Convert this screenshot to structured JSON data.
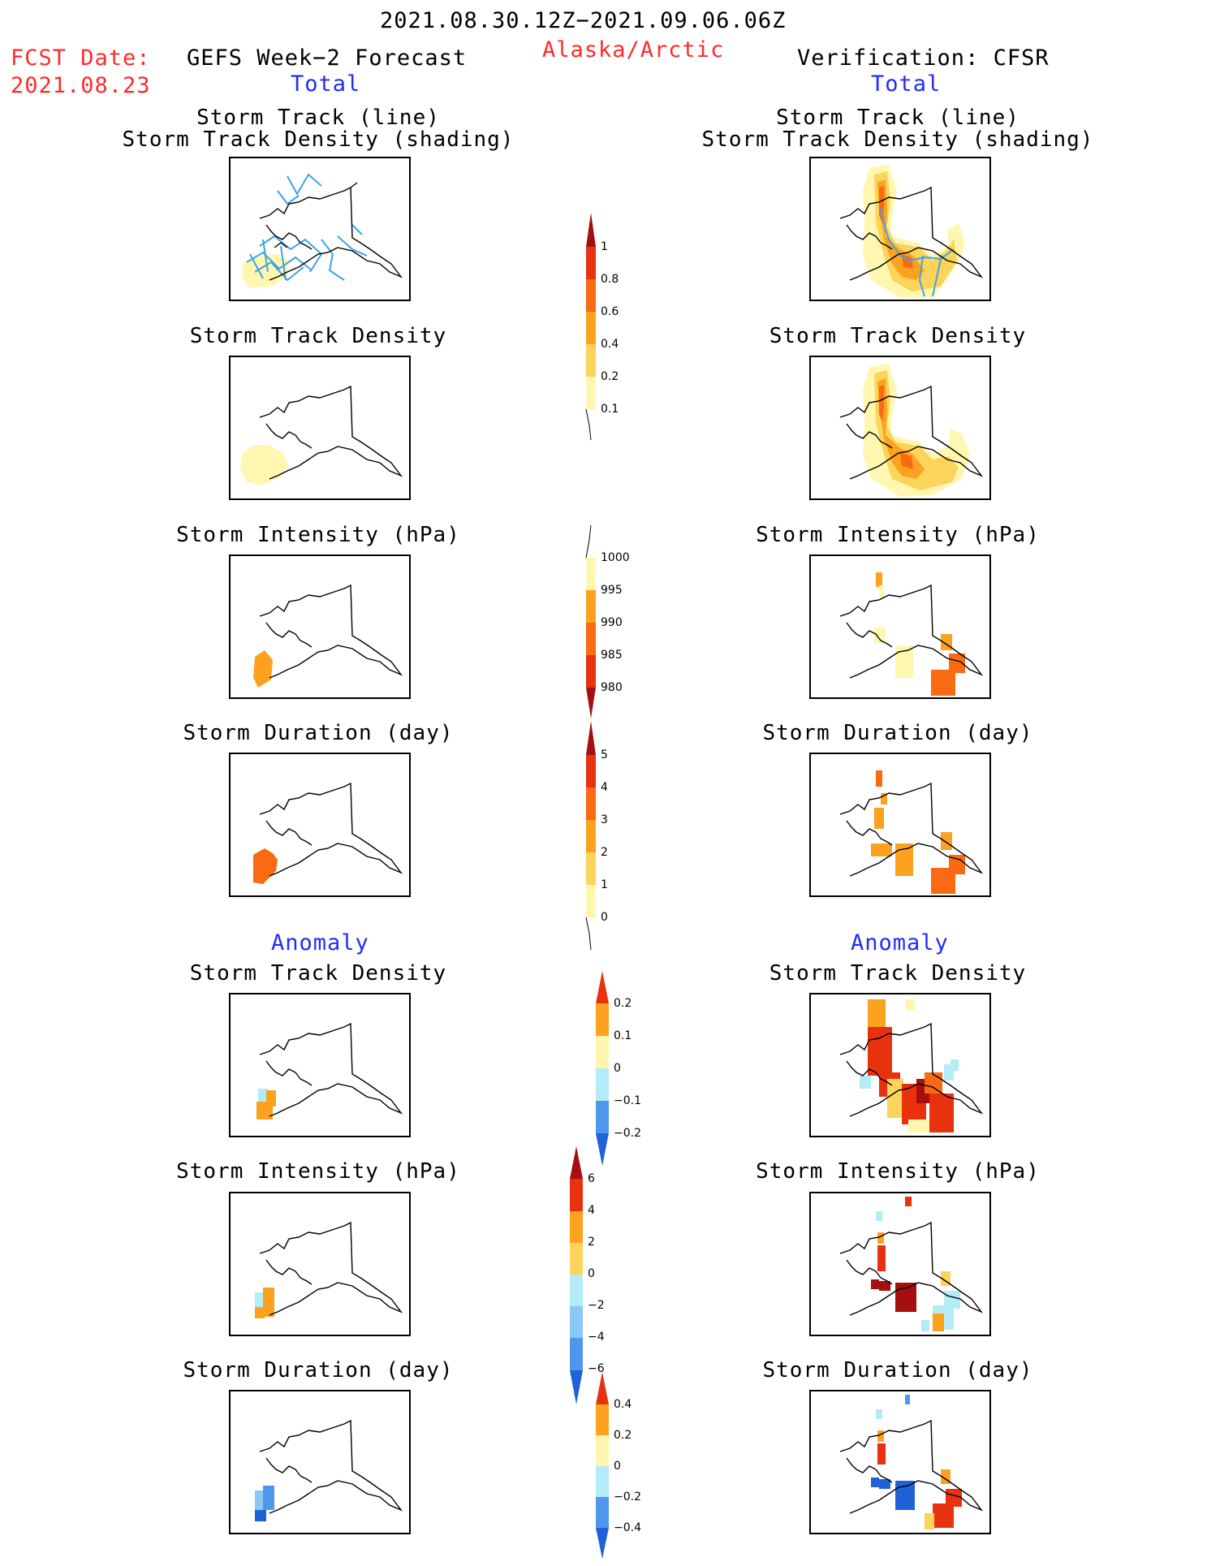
{
  "header": {
    "date_range": "2021.08.30.12Z−2021.09.06.06Z",
    "region": "Alaska/Arctic",
    "fcst_label": "FCST Date:",
    "fcst_date": "2021.08.23",
    "left_title": "GEFS Week−2 Forecast",
    "right_title": "Verification: CFSR"
  },
  "sections": {
    "total": "Total",
    "anomaly": "Anomaly"
  },
  "panels": {
    "track_line_1": "Storm Track (line)",
    "track_line_2": "Storm Track Density (shading)",
    "density": "Storm Track Density",
    "intensity": "Storm Intensity (hPa)",
    "duration": "Storm Duration (day)"
  },
  "colorbars": {
    "density": [
      "1",
      "0.8",
      "0.6",
      "0.4",
      "0.2",
      "0.1"
    ],
    "intensity": [
      "1000",
      "995",
      "990",
      "985",
      "980"
    ],
    "duration": [
      "5",
      "4",
      "3",
      "2",
      "1",
      "0"
    ],
    "anom_density": [
      "0.2",
      "0.1",
      "0",
      "−0.1",
      "−0.2"
    ],
    "anom_intensity": [
      "6",
      "4",
      "2",
      "0",
      "−2",
      "−4",
      "−6"
    ],
    "anom_duration": [
      "0.4",
      "0.2",
      "0",
      "−0.2",
      "−0.4"
    ]
  },
  "colors": {
    "title_red": "#ff2a2a",
    "title_blue": "#1f2bff",
    "warm_scale": [
      "#fff7b0",
      "#fcd35b",
      "#fca21e",
      "#f96a13",
      "#e8320f",
      "#a50f0f"
    ],
    "cool_scale": [
      "#b3ecf7",
      "#8ac8f5",
      "#4f97ec",
      "#1f62d8"
    ],
    "track_line": "#3ea3ea"
  }
}
